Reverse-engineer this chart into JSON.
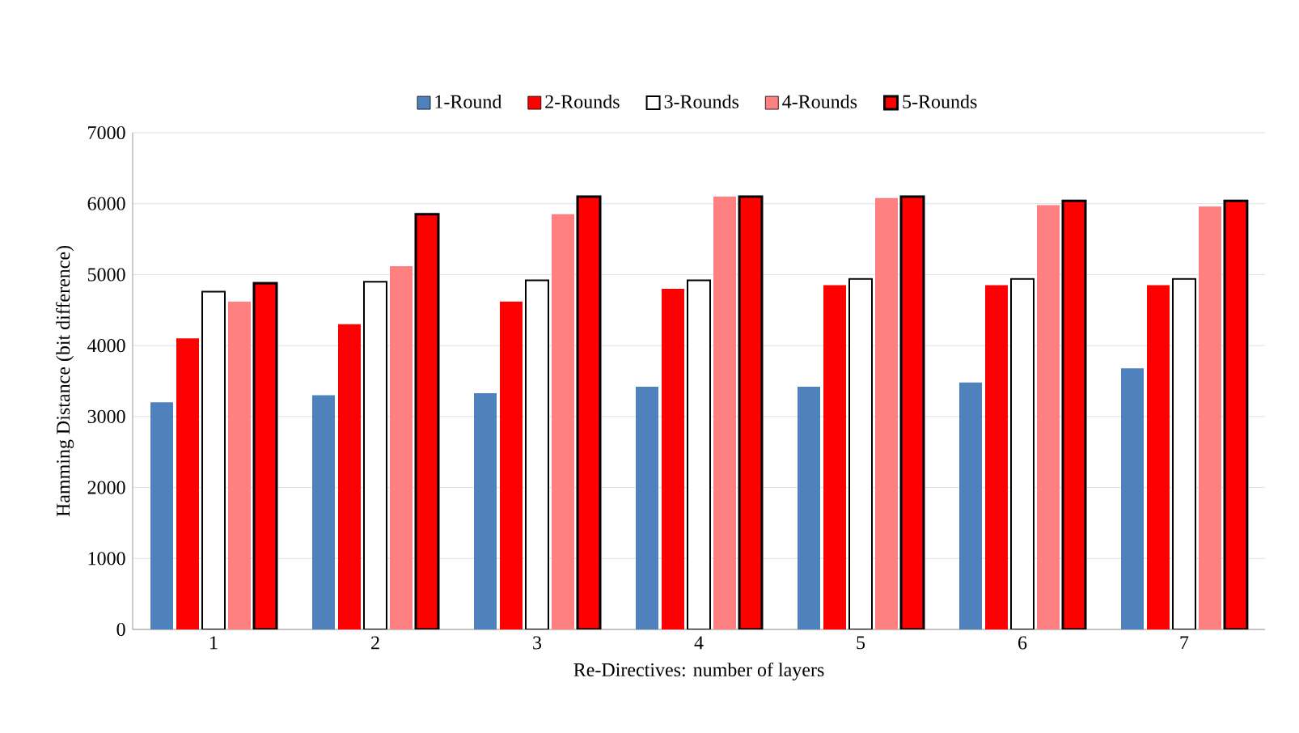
{
  "chart_data": {
    "type": "bar",
    "xlabel": "Re-Directives: number of layers",
    "ylabel": "Hamming Distance (bit difference)",
    "categories": [
      "1",
      "2",
      "3",
      "4",
      "5",
      "6",
      "7"
    ],
    "series": [
      {
        "name": "1-Round",
        "color": "#4f81bd",
        "values": [
          3200,
          3300,
          3330,
          3420,
          3420,
          3480,
          3680
        ]
      },
      {
        "name": "2-Rounds",
        "color": "#ff0000",
        "values": [
          4100,
          4300,
          4620,
          4800,
          4850,
          4850,
          4850
        ]
      },
      {
        "name": "3-Rounds",
        "color": "#ffffff",
        "values": [
          4760,
          4900,
          4920,
          4920,
          4940,
          4940,
          4940
        ]
      },
      {
        "name": "4-Rounds",
        "color": "#ff8080",
        "values": [
          4620,
          5120,
          5850,
          6100,
          6080,
          5980,
          5960
        ]
      },
      {
        "name": "5-Rounds",
        "color": "#ff0000",
        "values": [
          4880,
          5850,
          6100,
          6100,
          6100,
          6040,
          6040
        ]
      }
    ],
    "ylim": [
      0,
      7000
    ],
    "yticks": [
      0,
      1000,
      2000,
      3000,
      4000,
      5000,
      6000,
      7000
    ],
    "grid": "y",
    "legend": "top"
  }
}
